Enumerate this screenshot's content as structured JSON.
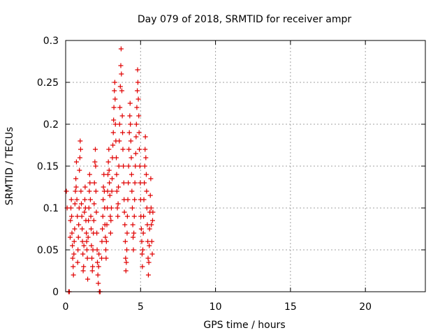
{
  "chart_data": {
    "type": "scatter",
    "title": "Day 079 of 2018, SRMTID for receiver ampr",
    "xlabel": "GPS time / hours",
    "ylabel": "SRMTID / TECUs",
    "xlim": [
      0,
      24
    ],
    "ylim": [
      0,
      0.3
    ],
    "xticks": [
      0,
      5,
      10,
      15,
      20
    ],
    "yticks": [
      0,
      0.05,
      0.1,
      0.15,
      0.2,
      0.25,
      0.3
    ],
    "xtick_labels": [
      "0",
      "5",
      "10",
      "15",
      "20"
    ],
    "ytick_labels": [
      "0",
      "0.05",
      "0.1",
      "0.15",
      "0.2",
      "0.25",
      "0.3"
    ],
    "grid": true,
    "series": [
      {
        "name": "SRMTID",
        "color": "#e00000",
        "marker": "plus",
        "points": [
          [
            0.05,
            0.12
          ],
          [
            0.1,
            0.1
          ],
          [
            0.2,
            0.0
          ],
          [
            0.25,
            0.0
          ],
          [
            0.3,
            0.065
          ],
          [
            0.32,
            0.085
          ],
          [
            0.35,
            0.1
          ],
          [
            0.38,
            0.11
          ],
          [
            0.4,
            0.09
          ],
          [
            0.42,
            0.07
          ],
          [
            0.45,
            0.055
          ],
          [
            0.47,
            0.04
          ],
          [
            0.5,
            0.03
          ],
          [
            0.52,
            0.02
          ],
          [
            0.55,
            0.045
          ],
          [
            0.57,
            0.06
          ],
          [
            0.6,
            0.075
          ],
          [
            0.62,
            0.105
          ],
          [
            0.65,
            0.12
          ],
          [
            0.68,
            0.135
          ],
          [
            0.7,
            0.125
          ],
          [
            0.72,
            0.155
          ],
          [
            0.75,
            0.11
          ],
          [
            0.78,
            0.09
          ],
          [
            0.8,
            0.035
          ],
          [
            0.82,
            0.05
          ],
          [
            0.85,
            0.065
          ],
          [
            0.87,
            0.08
          ],
          [
            0.9,
            0.1
          ],
          [
            0.92,
            0.145
          ],
          [
            0.95,
            0.16
          ],
          [
            0.97,
            0.18
          ],
          [
            1.0,
            0.17
          ],
          [
            1.02,
            0.12
          ],
          [
            1.05,
            0.105
          ],
          [
            1.08,
            0.09
          ],
          [
            1.1,
            0.075
          ],
          [
            1.12,
            0.06
          ],
          [
            1.15,
            0.045
          ],
          [
            1.17,
            0.025
          ],
          [
            1.2,
            0.03
          ],
          [
            1.22,
            0.055
          ],
          [
            1.25,
            0.095
          ],
          [
            1.28,
            0.11
          ],
          [
            1.3,
            0.125
          ],
          [
            1.32,
            0.1
          ],
          [
            1.35,
            0.085
          ],
          [
            1.38,
            0.07
          ],
          [
            1.4,
            0.06
          ],
          [
            1.42,
            0.05
          ],
          [
            1.45,
            0.04
          ],
          [
            1.47,
            0.015
          ],
          [
            1.5,
            0.065
          ],
          [
            1.52,
            0.085
          ],
          [
            1.55,
            0.1
          ],
          [
            1.58,
            0.12
          ],
          [
            1.6,
            0.14
          ],
          [
            1.62,
            0.13
          ],
          [
            1.65,
            0.11
          ],
          [
            1.68,
            0.09
          ],
          [
            1.7,
            0.075
          ],
          [
            1.72,
            0.055
          ],
          [
            1.75,
            0.04
          ],
          [
            1.78,
            0.025
          ],
          [
            1.8,
            0.03
          ],
          [
            1.82,
            0.05
          ],
          [
            1.85,
            0.07
          ],
          [
            1.88,
            0.085
          ],
          [
            1.9,
            0.105
          ],
          [
            1.92,
            0.13
          ],
          [
            1.95,
            0.155
          ],
          [
            1.98,
            0.17
          ],
          [
            2.0,
            0.15
          ],
          [
            2.02,
            0.12
          ],
          [
            2.05,
            0.095
          ],
          [
            2.08,
            0.07
          ],
          [
            2.1,
            0.05
          ],
          [
            2.12,
            0.035
          ],
          [
            2.15,
            0.02
          ],
          [
            2.18,
            0.01
          ],
          [
            2.2,
            0.03
          ],
          [
            2.22,
            0.045
          ],
          [
            2.25,
            0.0
          ],
          [
            2.3,
            0.0
          ],
          [
            2.4,
            0.04
          ],
          [
            2.42,
            0.06
          ],
          [
            2.45,
            0.075
          ],
          [
            2.48,
            0.09
          ],
          [
            2.5,
            0.11
          ],
          [
            2.52,
            0.125
          ],
          [
            2.55,
            0.14
          ],
          [
            2.58,
            0.12
          ],
          [
            2.6,
            0.1
          ],
          [
            2.62,
            0.08
          ],
          [
            2.65,
            0.065
          ],
          [
            2.68,
            0.05
          ],
          [
            2.7,
            0.04
          ],
          [
            2.72,
            0.06
          ],
          [
            2.75,
            0.08
          ],
          [
            2.78,
            0.1
          ],
          [
            2.8,
            0.12
          ],
          [
            2.82,
            0.14
          ],
          [
            2.85,
            0.155
          ],
          [
            2.88,
            0.17
          ],
          [
            2.9,
            0.145
          ],
          [
            2.92,
            0.13
          ],
          [
            2.95,
            0.115
          ],
          [
            2.98,
            0.09
          ],
          [
            3.0,
            0.07
          ],
          [
            3.02,
            0.085
          ],
          [
            3.05,
            0.1
          ],
          [
            3.08,
            0.12
          ],
          [
            3.1,
            0.135
          ],
          [
            3.12,
            0.16
          ],
          [
            3.15,
            0.175
          ],
          [
            3.18,
            0.19
          ],
          [
            3.2,
            0.205
          ],
          [
            3.22,
            0.22
          ],
          [
            3.25,
            0.24
          ],
          [
            3.28,
            0.25
          ],
          [
            3.3,
            0.23
          ],
          [
            3.32,
            0.2
          ],
          [
            3.35,
            0.18
          ],
          [
            3.38,
            0.16
          ],
          [
            3.4,
            0.14
          ],
          [
            3.42,
            0.12
          ],
          [
            3.45,
            0.1
          ],
          [
            3.48,
            0.09
          ],
          [
            3.5,
            0.105
          ],
          [
            3.52,
            0.125
          ],
          [
            3.55,
            0.15
          ],
          [
            3.58,
            0.18
          ],
          [
            3.6,
            0.2
          ],
          [
            3.62,
            0.22
          ],
          [
            3.65,
            0.245
          ],
          [
            3.68,
            0.27
          ],
          [
            3.7,
            0.29
          ],
          [
            3.72,
            0.26
          ],
          [
            3.75,
            0.24
          ],
          [
            3.78,
            0.21
          ],
          [
            3.8,
            0.19
          ],
          [
            3.82,
            0.17
          ],
          [
            3.85,
            0.15
          ],
          [
            3.88,
            0.13
          ],
          [
            3.9,
            0.11
          ],
          [
            3.92,
            0.095
          ],
          [
            3.95,
            0.08
          ],
          [
            3.98,
            0.06
          ],
          [
            4.0,
            0.04
          ],
          [
            4.02,
            0.025
          ],
          [
            4.05,
            0.035
          ],
          [
            4.08,
            0.05
          ],
          [
            4.1,
            0.07
          ],
          [
            4.12,
            0.09
          ],
          [
            4.15,
            0.11
          ],
          [
            4.18,
            0.13
          ],
          [
            4.2,
            0.15
          ],
          [
            4.22,
            0.17
          ],
          [
            4.25,
            0.19
          ],
          [
            4.28,
            0.21
          ],
          [
            4.3,
            0.225
          ],
          [
            4.32,
            0.2
          ],
          [
            4.35,
            0.18
          ],
          [
            4.38,
            0.16
          ],
          [
            4.4,
            0.14
          ],
          [
            4.42,
            0.12
          ],
          [
            4.45,
            0.1
          ],
          [
            4.48,
            0.08
          ],
          [
            4.5,
            0.065
          ],
          [
            4.52,
            0.05
          ],
          [
            4.55,
            0.07
          ],
          [
            4.58,
            0.09
          ],
          [
            4.6,
            0.11
          ],
          [
            4.62,
            0.13
          ],
          [
            4.65,
            0.15
          ],
          [
            4.68,
            0.165
          ],
          [
            4.7,
            0.185
          ],
          [
            4.72,
            0.2
          ],
          [
            4.75,
            0.22
          ],
          [
            4.78,
            0.24
          ],
          [
            4.8,
            0.265
          ],
          [
            4.82,
            0.25
          ],
          [
            4.85,
            0.23
          ],
          [
            4.88,
            0.21
          ],
          [
            4.9,
            0.19
          ],
          [
            4.92,
            0.17
          ],
          [
            4.95,
            0.15
          ],
          [
            4.98,
            0.13
          ],
          [
            5.0,
            0.11
          ],
          [
            5.02,
            0.09
          ],
          [
            5.05,
            0.075
          ],
          [
            5.08,
            0.06
          ],
          [
            5.1,
            0.045
          ],
          [
            5.12,
            0.03
          ],
          [
            5.15,
            0.05
          ],
          [
            5.18,
            0.07
          ],
          [
            5.2,
            0.09
          ],
          [
            5.22,
            0.11
          ],
          [
            5.25,
            0.13
          ],
          [
            5.28,
            0.15
          ],
          [
            5.3,
            0.17
          ],
          [
            5.32,
            0.185
          ],
          [
            5.35,
            0.16
          ],
          [
            5.38,
            0.14
          ],
          [
            5.4,
            0.12
          ],
          [
            5.42,
            0.1
          ],
          [
            5.45,
            0.08
          ],
          [
            5.48,
            0.06
          ],
          [
            5.5,
            0.04
          ],
          [
            5.52,
            0.02
          ],
          [
            5.55,
            0.035
          ],
          [
            5.58,
            0.055
          ],
          [
            5.6,
            0.075
          ],
          [
            5.62,
            0.095
          ],
          [
            5.65,
            0.115
          ],
          [
            5.68,
            0.135
          ],
          [
            5.7,
            0.1
          ],
          [
            5.72,
            0.08
          ],
          [
            5.75,
            0.06
          ],
          [
            5.78,
            0.045
          ],
          [
            5.8,
            0.085
          ],
          [
            5.82,
            0.095
          ]
        ]
      }
    ]
  }
}
